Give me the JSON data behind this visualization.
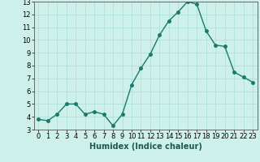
{
  "x": [
    0,
    1,
    2,
    3,
    4,
    5,
    6,
    7,
    8,
    9,
    10,
    11,
    12,
    13,
    14,
    15,
    16,
    17,
    18,
    19,
    20,
    21,
    22,
    23
  ],
  "y": [
    3.8,
    3.7,
    4.2,
    5.0,
    5.0,
    4.2,
    4.4,
    4.2,
    3.3,
    4.2,
    6.5,
    7.8,
    8.9,
    10.4,
    11.5,
    12.2,
    13.0,
    12.8,
    10.7,
    9.6,
    9.5,
    7.5,
    7.1,
    6.7
  ],
  "line_color": "#1a7a6a",
  "marker_color": "#1a7a6a",
  "bg_color": "#cdf0eb",
  "grid_color": "#aaddd8",
  "xlabel": "Humidex (Indice chaleur)",
  "xlim": [
    -0.5,
    23.5
  ],
  "ylim": [
    3,
    13
  ],
  "yticks": [
    3,
    4,
    5,
    6,
    7,
    8,
    9,
    10,
    11,
    12,
    13
  ],
  "xticks": [
    0,
    1,
    2,
    3,
    4,
    5,
    6,
    7,
    8,
    9,
    10,
    11,
    12,
    13,
    14,
    15,
    16,
    17,
    18,
    19,
    20,
    21,
    22,
    23
  ],
  "xlabel_fontsize": 7,
  "tick_fontsize": 6,
  "marker_size": 2.5,
  "line_width": 1.0
}
